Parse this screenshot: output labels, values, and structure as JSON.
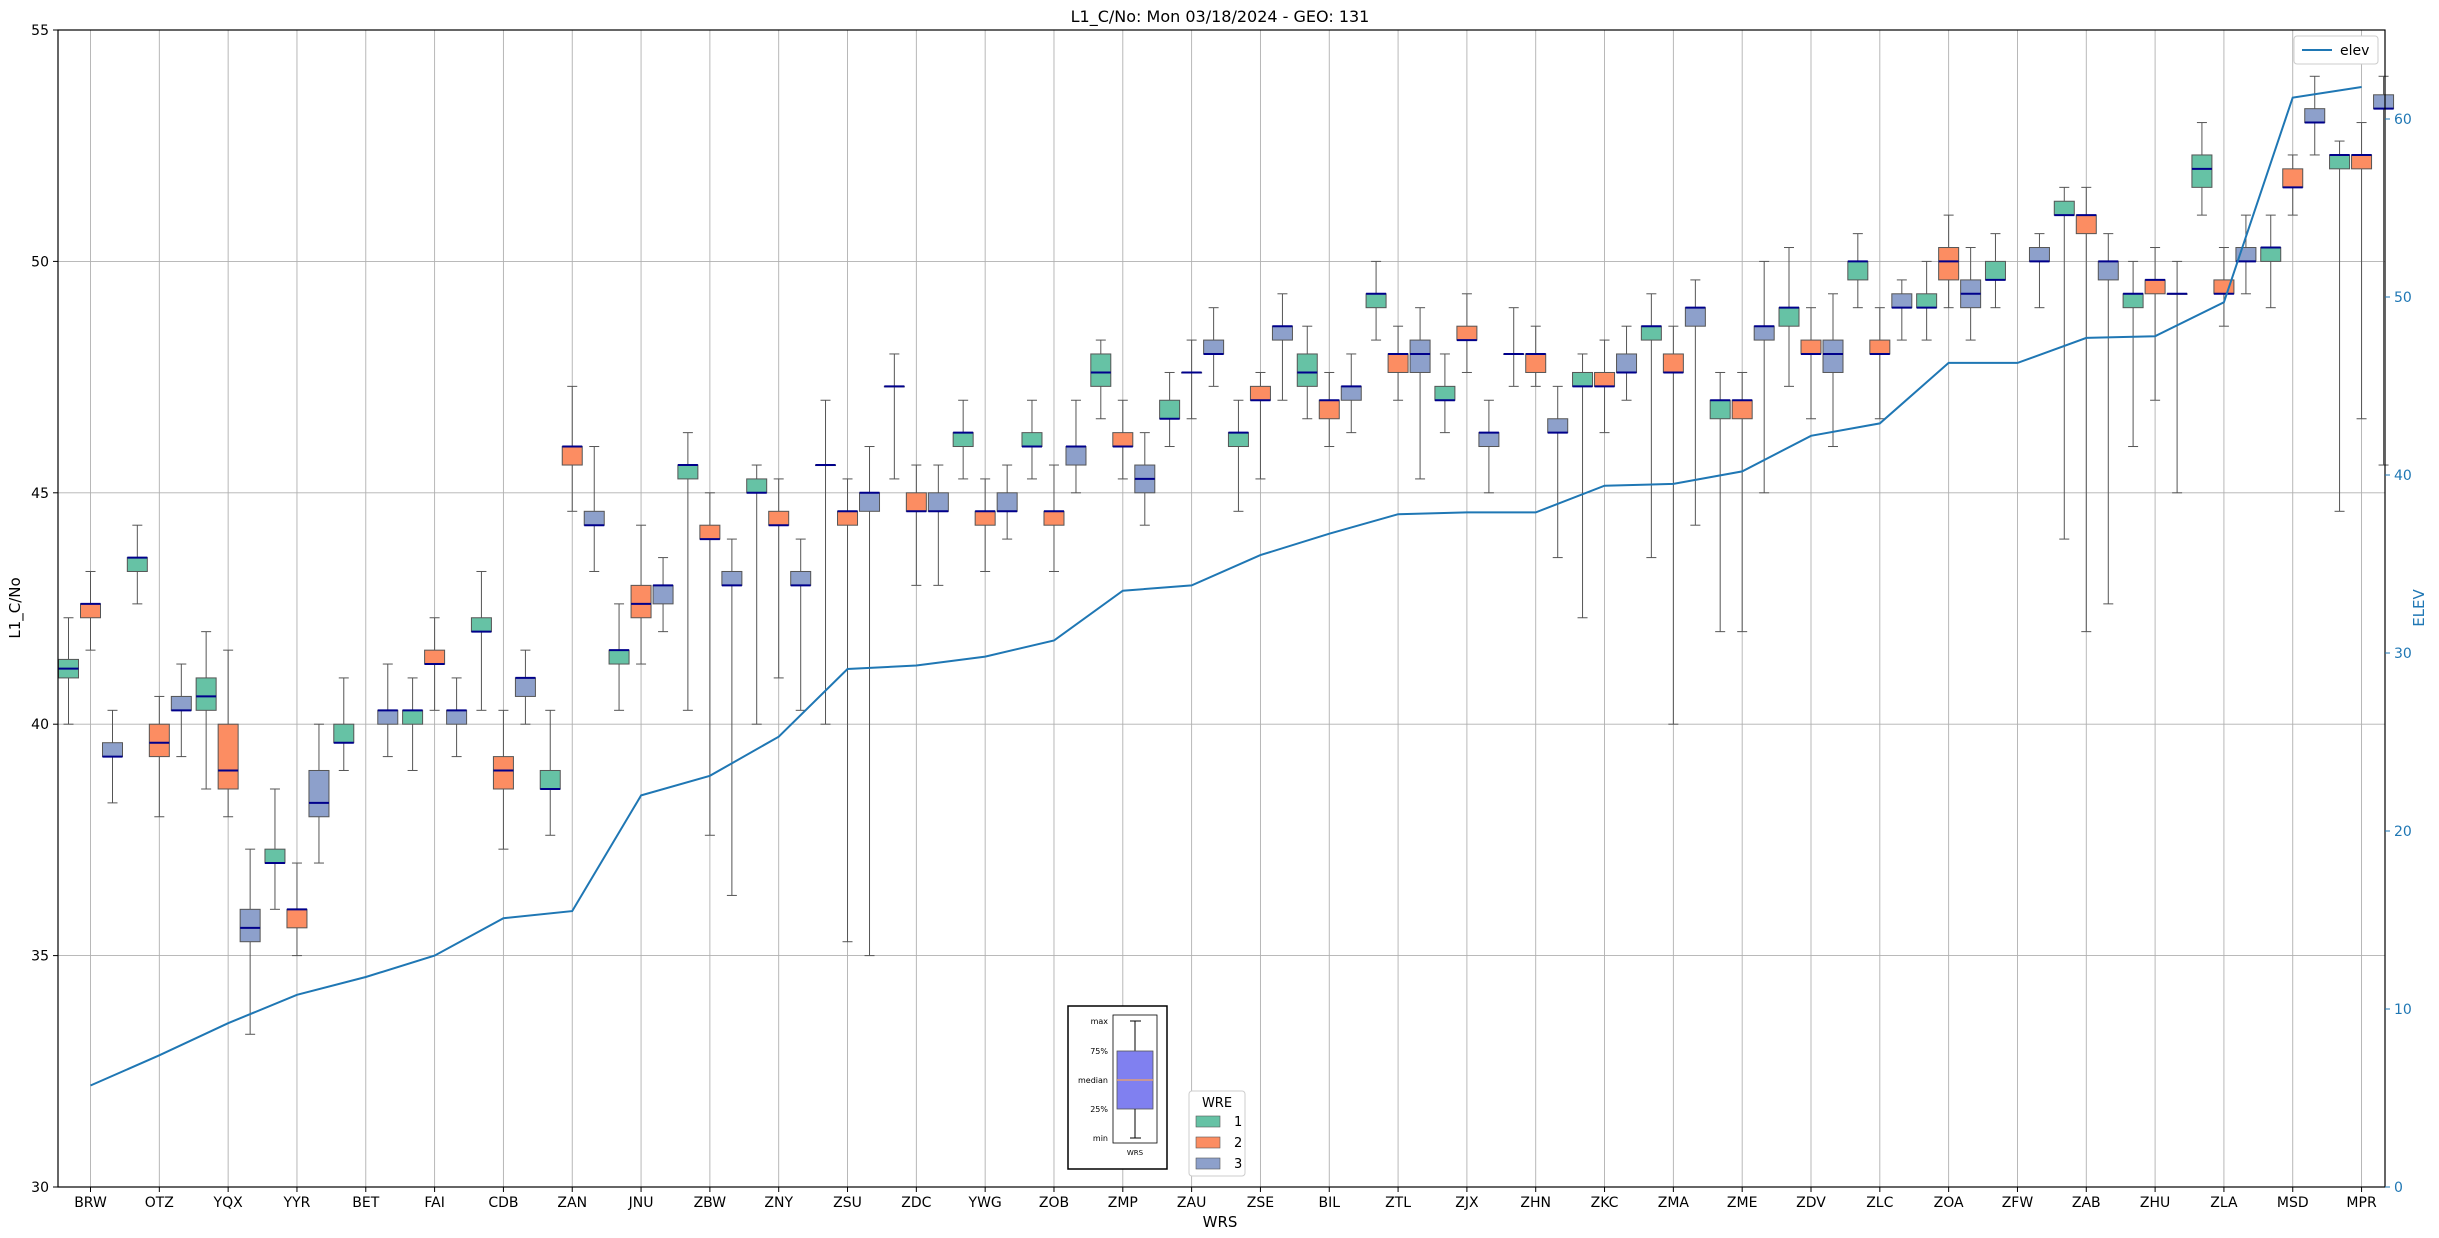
{
  "chart_data": {
    "type": "box",
    "title": "L1_C/No: Mon 03/18/2024 - GEO: 131",
    "xlabel": "WRS",
    "ylabel": "L1_C/No",
    "y2label": "ELEV",
    "ylim": [
      30,
      55
    ],
    "y2lim": [
      0,
      65
    ],
    "yticks": [
      30,
      35,
      40,
      45,
      50,
      55
    ],
    "y2ticks": [
      0,
      10,
      20,
      30,
      40,
      50,
      60
    ],
    "grid": true,
    "categories": [
      "BRW",
      "OTZ",
      "YQX",
      "YYR",
      "BET",
      "FAI",
      "CDB",
      "ZAN",
      "JNU",
      "ZBW",
      "ZNY",
      "ZSU",
      "ZDC",
      "YWG",
      "ZOB",
      "ZMP",
      "ZAU",
      "ZSE",
      "BIL",
      "ZTL",
      "ZJX",
      "ZHN",
      "ZKC",
      "ZMA",
      "ZME",
      "ZDV",
      "ZLC",
      "ZOA",
      "ZFW",
      "ZAB",
      "ZHU",
      "ZLA",
      "MSD",
      "MPR"
    ],
    "legend": {
      "title": "WRE",
      "placement": "bottom-center",
      "entries": [
        {
          "label": "1",
          "color": "#66c2a5"
        },
        {
          "label": "2",
          "color": "#fc8d62"
        },
        {
          "label": "3",
          "color": "#8da0cb"
        }
      ]
    },
    "line_legend": {
      "label": "elev",
      "color": "#1f77b4",
      "placement": "top-right"
    },
    "inset_legend": {
      "labels": [
        "max",
        "75%",
        "median",
        "25%",
        "min"
      ],
      "xlabel": "WRS"
    },
    "series_colors": {
      "1": "#66c2a5",
      "2": "#fc8d62",
      "3": "#8da0cb"
    },
    "median_color": "#00008b",
    "boxes": [
      {
        "cat": "BRW",
        "wre": 1,
        "min": 40,
        "q1": 41,
        "med": 41.2,
        "q3": 41.4,
        "max": 42.3
      },
      {
        "cat": "BRW",
        "wre": 2,
        "min": 41.6,
        "q1": 42.3,
        "med": 42.6,
        "q3": 42.6,
        "max": 43.3
      },
      {
        "cat": "BRW",
        "wre": 3,
        "min": 38.3,
        "q1": 39.3,
        "med": 39.3,
        "q3": 39.6,
        "max": 40.3
      },
      {
        "cat": "OTZ",
        "wre": 1,
        "min": 42.6,
        "q1": 43.3,
        "med": 43.6,
        "q3": 43.6,
        "max": 44.3
      },
      {
        "cat": "OTZ",
        "wre": 2,
        "min": 38,
        "q1": 39.3,
        "med": 39.6,
        "q3": 40,
        "max": 40.6
      },
      {
        "cat": "OTZ",
        "wre": 3,
        "min": 39.3,
        "q1": 40.3,
        "med": 40.3,
        "q3": 40.6,
        "max": 41.3
      },
      {
        "cat": "YQX",
        "wre": 1,
        "min": 38.6,
        "q1": 40.3,
        "med": 40.6,
        "q3": 41,
        "max": 42
      },
      {
        "cat": "YQX",
        "wre": 2,
        "min": 38,
        "q1": 38.6,
        "med": 39,
        "q3": 40,
        "max": 41.6
      },
      {
        "cat": "YQX",
        "wre": 3,
        "min": 33.3,
        "q1": 35.3,
        "med": 35.6,
        "q3": 36,
        "max": 37.3
      },
      {
        "cat": "YYR",
        "wre": 1,
        "min": 36,
        "q1": 37,
        "med": 37,
        "q3": 37.3,
        "max": 38.6
      },
      {
        "cat": "YYR",
        "wre": 2,
        "min": 35,
        "q1": 35.6,
        "med": 36,
        "q3": 36,
        "max": 37
      },
      {
        "cat": "YYR",
        "wre": 3,
        "min": 37,
        "q1": 38,
        "med": 38.3,
        "q3": 39,
        "max": 40
      },
      {
        "cat": "BET",
        "wre": 1,
        "min": 39,
        "q1": 39.6,
        "med": 39.6,
        "q3": 40,
        "max": 41
      },
      {
        "cat": "BET",
        "wre": 3,
        "min": 39.3,
        "q1": 40,
        "med": 40.3,
        "q3": 40.3,
        "max": 41.3
      },
      {
        "cat": "FAI",
        "wre": 1,
        "min": 39,
        "q1": 40,
        "med": 40.3,
        "q3": 40.3,
        "max": 41
      },
      {
        "cat": "FAI",
        "wre": 2,
        "min": 40.3,
        "q1": 41.3,
        "med": 41.3,
        "q3": 41.6,
        "max": 42.3
      },
      {
        "cat": "FAI",
        "wre": 3,
        "min": 39.3,
        "q1": 40,
        "med": 40.3,
        "q3": 40.3,
        "max": 41
      },
      {
        "cat": "CDB",
        "wre": 1,
        "min": 40.3,
        "q1": 42,
        "med": 42,
        "q3": 42.3,
        "max": 43.3
      },
      {
        "cat": "CDB",
        "wre": 2,
        "min": 37.3,
        "q1": 38.6,
        "med": 39,
        "q3": 39.3,
        "max": 40.3
      },
      {
        "cat": "CDB",
        "wre": 3,
        "min": 40,
        "q1": 40.6,
        "med": 41,
        "q3": 41,
        "max": 41.6
      },
      {
        "cat": "ZAN",
        "wre": 1,
        "min": 37.6,
        "q1": 38.6,
        "med": 38.6,
        "q3": 39,
        "max": 40.3
      },
      {
        "cat": "ZAN",
        "wre": 2,
        "min": 44.6,
        "q1": 45.6,
        "med": 46,
        "q3": 46,
        "max": 47.3
      },
      {
        "cat": "ZAN",
        "wre": 3,
        "min": 43.3,
        "q1": 44.3,
        "med": 44.3,
        "q3": 44.6,
        "max": 46
      },
      {
        "cat": "JNU",
        "wre": 1,
        "min": 40.3,
        "q1": 41.3,
        "med": 41.6,
        "q3": 41.6,
        "max": 42.6
      },
      {
        "cat": "JNU",
        "wre": 2,
        "min": 41.3,
        "q1": 42.3,
        "med": 42.6,
        "q3": 43,
        "max": 44.3
      },
      {
        "cat": "JNU",
        "wre": 3,
        "min": 42,
        "q1": 42.6,
        "med": 43,
        "q3": 43,
        "max": 43.6
      },
      {
        "cat": "ZBW",
        "wre": 1,
        "min": 40.3,
        "q1": 45.3,
        "med": 45.6,
        "q3": 45.6,
        "max": 46.3
      },
      {
        "cat": "ZBW",
        "wre": 2,
        "min": 37.6,
        "q1": 44,
        "med": 44,
        "q3": 44.3,
        "max": 45
      },
      {
        "cat": "ZBW",
        "wre": 3,
        "min": 36.3,
        "q1": 43,
        "med": 43,
        "q3": 43.3,
        "max": 44
      },
      {
        "cat": "ZNY",
        "wre": 1,
        "min": 40,
        "q1": 45,
        "med": 45,
        "q3": 45.3,
        "max": 45.6
      },
      {
        "cat": "ZNY",
        "wre": 2,
        "min": 41,
        "q1": 44.3,
        "med": 44.3,
        "q3": 44.6,
        "max": 45.3
      },
      {
        "cat": "ZNY",
        "wre": 3,
        "min": 40.3,
        "q1": 43,
        "med": 43,
        "q3": 43.3,
        "max": 44
      },
      {
        "cat": "ZSU",
        "wre": 1,
        "min": 40,
        "q1": 45.6,
        "med": 45.6,
        "q3": 45.6,
        "max": 47
      },
      {
        "cat": "ZSU",
        "wre": 2,
        "min": 35.3,
        "q1": 44.3,
        "med": 44.6,
        "q3": 44.6,
        "max": 45.3
      },
      {
        "cat": "ZSU",
        "wre": 3,
        "min": 35,
        "q1": 44.6,
        "med": 45,
        "q3": 45,
        "max": 46
      },
      {
        "cat": "ZDC",
        "wre": 1,
        "min": 45.3,
        "q1": 47.3,
        "med": 47.3,
        "q3": 47.3,
        "max": 48
      },
      {
        "cat": "ZDC",
        "wre": 2,
        "min": 43,
        "q1": 44.6,
        "med": 44.6,
        "q3": 45,
        "max": 45.6
      },
      {
        "cat": "ZDC",
        "wre": 3,
        "min": 43,
        "q1": 44.6,
        "med": 44.6,
        "q3": 45,
        "max": 45.6
      },
      {
        "cat": "YWG",
        "wre": 1,
        "min": 45.3,
        "q1": 46,
        "med": 46.3,
        "q3": 46.3,
        "max": 47
      },
      {
        "cat": "YWG",
        "wre": 2,
        "min": 43.3,
        "q1": 44.3,
        "med": 44.6,
        "q3": 44.6,
        "max": 45.3
      },
      {
        "cat": "YWG",
        "wre": 3,
        "min": 44,
        "q1": 44.6,
        "med": 44.6,
        "q3": 45,
        "max": 45.6
      },
      {
        "cat": "ZOB",
        "wre": 1,
        "min": 45.3,
        "q1": 46,
        "med": 46,
        "q3": 46.3,
        "max": 47
      },
      {
        "cat": "ZOB",
        "wre": 2,
        "min": 43.3,
        "q1": 44.3,
        "med": 44.6,
        "q3": 44.6,
        "max": 45.6
      },
      {
        "cat": "ZOB",
        "wre": 3,
        "min": 45,
        "q1": 45.6,
        "med": 46,
        "q3": 46,
        "max": 47
      },
      {
        "cat": "ZMP",
        "wre": 1,
        "min": 46.6,
        "q1": 47.3,
        "med": 47.6,
        "q3": 48,
        "max": 48.3
      },
      {
        "cat": "ZMP",
        "wre": 2,
        "min": 45.3,
        "q1": 46,
        "med": 46,
        "q3": 46.3,
        "max": 47
      },
      {
        "cat": "ZMP",
        "wre": 3,
        "min": 44.3,
        "q1": 45,
        "med": 45.3,
        "q3": 45.6,
        "max": 46.3
      },
      {
        "cat": "ZAU",
        "wre": 1,
        "min": 46,
        "q1": 46.6,
        "med": 46.6,
        "q3": 47,
        "max": 47.6
      },
      {
        "cat": "ZAU",
        "wre": 2,
        "min": 46.6,
        "q1": 47.6,
        "med": 47.6,
        "q3": 47.6,
        "max": 48.3
      },
      {
        "cat": "ZAU",
        "wre": 3,
        "min": 47.3,
        "q1": 48,
        "med": 48,
        "q3": 48.3,
        "max": 49
      },
      {
        "cat": "ZSE",
        "wre": 1,
        "min": 44.6,
        "q1": 46,
        "med": 46.3,
        "q3": 46.3,
        "max": 47
      },
      {
        "cat": "ZSE",
        "wre": 2,
        "min": 45.3,
        "q1": 47,
        "med": 47,
        "q3": 47.3,
        "max": 47.6
      },
      {
        "cat": "ZSE",
        "wre": 3,
        "min": 47,
        "q1": 48.3,
        "med": 48.6,
        "q3": 48.6,
        "max": 49.3
      },
      {
        "cat": "BIL",
        "wre": 1,
        "min": 46.6,
        "q1": 47.3,
        "med": 47.6,
        "q3": 48,
        "max": 48.6
      },
      {
        "cat": "BIL",
        "wre": 2,
        "min": 46,
        "q1": 46.6,
        "med": 47,
        "q3": 47,
        "max": 47.6
      },
      {
        "cat": "BIL",
        "wre": 3,
        "min": 46.3,
        "q1": 47,
        "med": 47.3,
        "q3": 47.3,
        "max": 48
      },
      {
        "cat": "ZTL",
        "wre": 1,
        "min": 48.3,
        "q1": 49,
        "med": 49.3,
        "q3": 49.3,
        "max": 50
      },
      {
        "cat": "ZTL",
        "wre": 2,
        "min": 47,
        "q1": 47.6,
        "med": 48,
        "q3": 48,
        "max": 48.6
      },
      {
        "cat": "ZTL",
        "wre": 3,
        "min": 45.3,
        "q1": 47.6,
        "med": 48,
        "q3": 48.3,
        "max": 49
      },
      {
        "cat": "ZJX",
        "wre": 1,
        "min": 46.3,
        "q1": 47,
        "med": 47,
        "q3": 47.3,
        "max": 48
      },
      {
        "cat": "ZJX",
        "wre": 2,
        "min": 47.6,
        "q1": 48.3,
        "med": 48.3,
        "q3": 48.6,
        "max": 49.3
      },
      {
        "cat": "ZJX",
        "wre": 3,
        "min": 45,
        "q1": 46,
        "med": 46.3,
        "q3": 46.3,
        "max": 47
      },
      {
        "cat": "ZHN",
        "wre": 1,
        "min": 47.3,
        "q1": 48,
        "med": 48,
        "q3": 48,
        "max": 49
      },
      {
        "cat": "ZHN",
        "wre": 2,
        "min": 47.3,
        "q1": 47.6,
        "med": 48,
        "q3": 48,
        "max": 48.6
      },
      {
        "cat": "ZHN",
        "wre": 3,
        "min": 43.6,
        "q1": 46.3,
        "med": 46.3,
        "q3": 46.6,
        "max": 47.3
      },
      {
        "cat": "ZKC",
        "wre": 1,
        "min": 42.3,
        "q1": 47.3,
        "med": 47.3,
        "q3": 47.6,
        "max": 48
      },
      {
        "cat": "ZKC",
        "wre": 2,
        "min": 46.3,
        "q1": 47.3,
        "med": 47.3,
        "q3": 47.6,
        "max": 48.3
      },
      {
        "cat": "ZKC",
        "wre": 3,
        "min": 47,
        "q1": 47.6,
        "med": 47.6,
        "q3": 48,
        "max": 48.6
      },
      {
        "cat": "ZMA",
        "wre": 1,
        "min": 43.6,
        "q1": 48.3,
        "med": 48.6,
        "q3": 48.6,
        "max": 49.3
      },
      {
        "cat": "ZMA",
        "wre": 2,
        "min": 40,
        "q1": 47.6,
        "med": 47.6,
        "q3": 48,
        "max": 48.6
      },
      {
        "cat": "ZMA",
        "wre": 3,
        "min": 44.3,
        "q1": 48.6,
        "med": 49,
        "q3": 49,
        "max": 49.6
      },
      {
        "cat": "ZME",
        "wre": 1,
        "min": 42,
        "q1": 46.6,
        "med": 47,
        "q3": 47,
        "max": 47.6
      },
      {
        "cat": "ZME",
        "wre": 2,
        "min": 42,
        "q1": 46.6,
        "med": 47,
        "q3": 47,
        "max": 47.6
      },
      {
        "cat": "ZME",
        "wre": 3,
        "min": 45,
        "q1": 48.3,
        "med": 48.6,
        "q3": 48.6,
        "max": 50
      },
      {
        "cat": "ZDV",
        "wre": 1,
        "min": 47.3,
        "q1": 48.6,
        "med": 49,
        "q3": 49,
        "max": 50.3
      },
      {
        "cat": "ZDV",
        "wre": 2,
        "min": 46.6,
        "q1": 48,
        "med": 48,
        "q3": 48.3,
        "max": 49
      },
      {
        "cat": "ZDV",
        "wre": 3,
        "min": 46,
        "q1": 47.6,
        "med": 48,
        "q3": 48.3,
        "max": 49.3
      },
      {
        "cat": "ZLC",
        "wre": 1,
        "min": 49,
        "q1": 49.6,
        "med": 50,
        "q3": 50,
        "max": 50.6
      },
      {
        "cat": "ZLC",
        "wre": 2,
        "min": 46.6,
        "q1": 48,
        "med": 48,
        "q3": 48.3,
        "max": 49
      },
      {
        "cat": "ZLC",
        "wre": 3,
        "min": 48.3,
        "q1": 49,
        "med": 49,
        "q3": 49.3,
        "max": 49.6
      },
      {
        "cat": "ZOA",
        "wre": 1,
        "min": 48.3,
        "q1": 49,
        "med": 49,
        "q3": 49.3,
        "max": 50
      },
      {
        "cat": "ZOA",
        "wre": 2,
        "min": 49,
        "q1": 49.6,
        "med": 50,
        "q3": 50.3,
        "max": 51
      },
      {
        "cat": "ZOA",
        "wre": 3,
        "min": 48.3,
        "q1": 49,
        "med": 49.3,
        "q3": 49.6,
        "max": 50.3
      },
      {
        "cat": "ZFW",
        "wre": 1,
        "min": 49,
        "q1": 49.6,
        "med": 49.6,
        "q3": 50,
        "max": 50.6
      },
      {
        "cat": "ZFW",
        "wre": 3,
        "min": 49,
        "q1": 50,
        "med": 50,
        "q3": 50.3,
        "max": 50.6
      },
      {
        "cat": "ZAB",
        "wre": 1,
        "min": 44,
        "q1": 51,
        "med": 51,
        "q3": 51.3,
        "max": 51.6
      },
      {
        "cat": "ZAB",
        "wre": 2,
        "min": 42,
        "q1": 50.6,
        "med": 51,
        "q3": 51,
        "max": 51.6
      },
      {
        "cat": "ZAB",
        "wre": 3,
        "min": 42.6,
        "q1": 49.6,
        "med": 50,
        "q3": 50,
        "max": 50.6
      },
      {
        "cat": "ZHU",
        "wre": 1,
        "min": 46,
        "q1": 49,
        "med": 49.3,
        "q3": 49.3,
        "max": 50
      },
      {
        "cat": "ZHU",
        "wre": 2,
        "min": 47,
        "q1": 49.3,
        "med": 49.6,
        "q3": 49.6,
        "max": 50.3
      },
      {
        "cat": "ZHU",
        "wre": 3,
        "min": 45,
        "q1": 49.3,
        "med": 49.3,
        "q3": 49.3,
        "max": 50
      },
      {
        "cat": "ZLA",
        "wre": 1,
        "min": 51,
        "q1": 51.6,
        "med": 52,
        "q3": 52.3,
        "max": 53
      },
      {
        "cat": "ZLA",
        "wre": 2,
        "min": 48.6,
        "q1": 49.3,
        "med": 49.3,
        "q3": 49.6,
        "max": 50.3
      },
      {
        "cat": "ZLA",
        "wre": 3,
        "min": 49.3,
        "q1": 50,
        "med": 50,
        "q3": 50.3,
        "max": 51
      },
      {
        "cat": "MSD",
        "wre": 1,
        "min": 49,
        "q1": 50,
        "med": 50.3,
        "q3": 50.3,
        "max": 51
      },
      {
        "cat": "MSD",
        "wre": 2,
        "min": 51,
        "q1": 51.6,
        "med": 51.6,
        "q3": 52,
        "max": 52.3
      },
      {
        "cat": "MSD",
        "wre": 3,
        "min": 52.3,
        "q1": 53,
        "med": 53,
        "q3": 53.3,
        "max": 54
      },
      {
        "cat": "MPR",
        "wre": 1,
        "min": 44.6,
        "q1": 52,
        "med": 52.3,
        "q3": 52.3,
        "max": 52.6
      },
      {
        "cat": "MPR",
        "wre": 2,
        "min": 46.6,
        "q1": 52,
        "med": 52.3,
        "q3": 52.3,
        "max": 53
      },
      {
        "cat": "MPR",
        "wre": 3,
        "min": 45.6,
        "q1": 53.3,
        "med": 53.3,
        "q3": 53.6,
        "max": 54
      }
    ],
    "elev": [
      5.7,
      7.4,
      9.2,
      10.8,
      11.8,
      13.0,
      15.1,
      15.5,
      22.0,
      23.1,
      25.3,
      29.1,
      29.3,
      29.8,
      30.7,
      33.5,
      33.8,
      35.5,
      36.7,
      37.8,
      37.9,
      37.9,
      39.4,
      39.5,
      40.2,
      42.2,
      42.9,
      46.3,
      46.3,
      47.7,
      47.8,
      49.7,
      61.2,
      61.8
    ]
  }
}
